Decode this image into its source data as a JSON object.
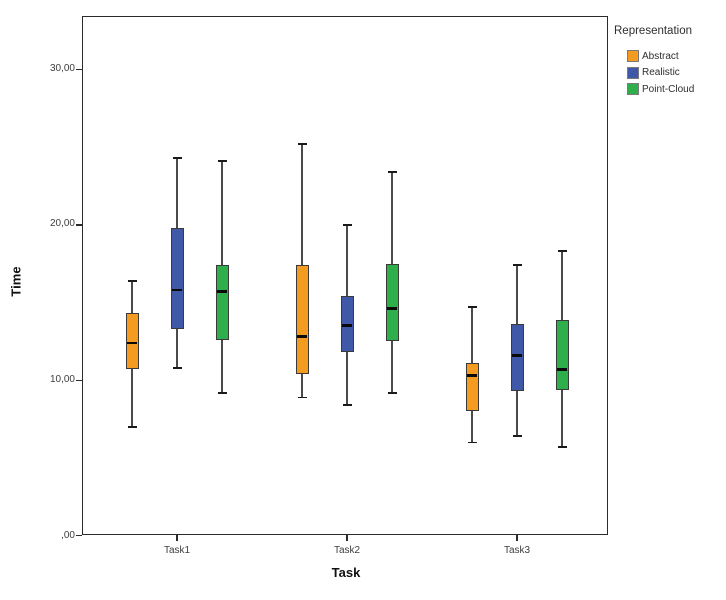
{
  "chart_data": {
    "type": "boxplot",
    "title": "",
    "xlabel": "Task",
    "ylabel": "Time",
    "categories": [
      "Task1",
      "Task2",
      "Task3"
    ],
    "y_ticks": [
      {
        "label": ",00",
        "value": 0
      },
      {
        "label": "10,00",
        "value": 10
      },
      {
        "label": "20,00",
        "value": 20
      },
      {
        "label": "30,00",
        "value": 30
      }
    ],
    "ylim": [
      0,
      33.4
    ],
    "grid": false,
    "legend": {
      "title": "Representation",
      "position": "top-right",
      "items": [
        {
          "label": "Abstract",
          "color": "#F49C20"
        },
        {
          "label": "Realistic",
          "color": "#4058A8"
        },
        {
          "label": "Point-Cloud",
          "color": "#2FAF4B"
        }
      ]
    },
    "series": [
      {
        "name": "Abstract",
        "color": "#F49C20",
        "boxes": [
          {
            "category": "Task1",
            "whisker_low": 7.0,
            "q1": 10.7,
            "median": 12.4,
            "q3": 14.3,
            "whisker_high": 16.4
          },
          {
            "category": "Task2",
            "whisker_low": 8.9,
            "q1": 10.4,
            "median": 12.8,
            "q3": 17.4,
            "whisker_high": 25.2
          },
          {
            "category": "Task3",
            "whisker_low": 6.0,
            "q1": 8.0,
            "median": 10.3,
            "q3": 11.1,
            "whisker_high": 14.7
          }
        ]
      },
      {
        "name": "Realistic",
        "color": "#4058A8",
        "boxes": [
          {
            "category": "Task1",
            "whisker_low": 10.8,
            "q1": 13.3,
            "median": 15.8,
            "q3": 19.8,
            "whisker_high": 24.3
          },
          {
            "category": "Task2",
            "whisker_low": 8.4,
            "q1": 11.8,
            "median": 13.5,
            "q3": 15.4,
            "whisker_high": 20.0
          },
          {
            "category": "Task3",
            "whisker_low": 6.4,
            "q1": 9.3,
            "median": 11.6,
            "q3": 13.6,
            "whisker_high": 17.4
          }
        ]
      },
      {
        "name": "Point-Cloud",
        "color": "#2FAF4B",
        "boxes": [
          {
            "category": "Task1",
            "whisker_low": 9.2,
            "q1": 12.6,
            "median": 15.7,
            "q3": 17.4,
            "whisker_high": 24.1
          },
          {
            "category": "Task2",
            "whisker_low": 9.2,
            "q1": 12.5,
            "median": 14.6,
            "q3": 17.5,
            "whisker_high": 23.4
          },
          {
            "category": "Task3",
            "whisker_low": 5.7,
            "q1": 9.4,
            "median": 10.7,
            "q3": 13.9,
            "whisker_high": 18.3
          }
        ]
      }
    ],
    "colors": {
      "box_border": "#3A3A3A",
      "whisker": "#4A4A4A",
      "median": "#0A0A0A",
      "axis": "#2B2B2B"
    }
  }
}
